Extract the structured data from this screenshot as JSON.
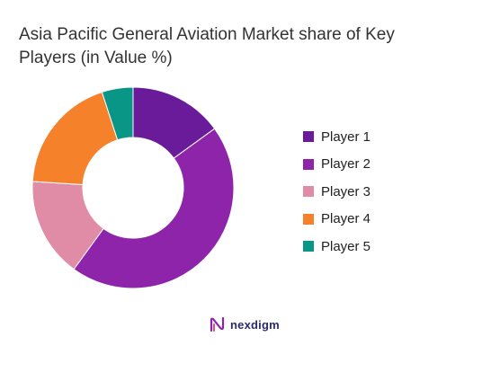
{
  "chart_data": {
    "type": "pie",
    "title": "Asia Pacific General Aviation Market share of Key Players (in Value %)",
    "labels": [
      "Player 1",
      "Player 2",
      "Player 3",
      "Player 4",
      "Player 5"
    ],
    "values": [
      15,
      45,
      16,
      19,
      5
    ],
    "colors": [
      "#6a1b9a",
      "#8e24aa",
      "#e08ca6",
      "#f5812a",
      "#0a9686"
    ],
    "legend": "right",
    "donut": true
  },
  "brand": {
    "logo_text": "nexdigm"
  }
}
